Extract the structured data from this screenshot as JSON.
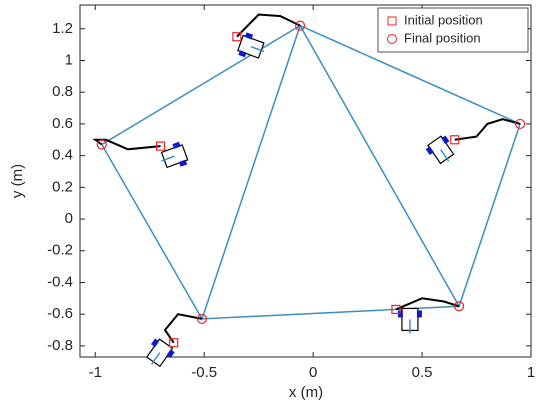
{
  "chart_data": {
    "type": "line",
    "xlabel": "x (m)",
    "ylabel": "y (m)",
    "xlim": [
      -1.07,
      1.0
    ],
    "ylim": [
      -0.87,
      1.35
    ],
    "xticks": [
      -1,
      -0.5,
      0,
      0.5,
      1
    ],
    "yticks": [
      -0.8,
      -0.6,
      -0.4,
      -0.2,
      0,
      0.2,
      0.4,
      0.6,
      0.8,
      1,
      1.2
    ],
    "legend": "top-right",
    "series": [
      {
        "name": "Initial position",
        "color": "#e8262d",
        "marker": "square",
        "x": [
          -0.35,
          0.65,
          0.38,
          -0.64,
          -0.7
        ],
        "y": [
          1.15,
          0.5,
          -0.57,
          -0.78,
          0.46
        ]
      },
      {
        "name": "Final position",
        "color": "#e8262d",
        "marker": "circle",
        "x": [
          -0.06,
          0.95,
          0.67,
          -0.51,
          -0.97
        ],
        "y": [
          1.22,
          0.6,
          -0.55,
          -0.63,
          0.47
        ]
      },
      {
        "color": "#3b8ec4",
        "x": [
          -0.06,
          0.95,
          0.67,
          -0.51,
          -0.97,
          -0.06,
          null,
          -0.06,
          -0.51,
          null,
          -0.06,
          0.67
        ],
        "y": [
          1.22,
          0.6,
          -0.55,
          -0.63,
          0.47,
          1.22,
          null,
          1.22,
          -0.63,
          null,
          1.22,
          -0.55
        ]
      },
      {
        "color": "#000000",
        "x": [
          -0.35,
          -0.3,
          -0.25,
          -0.15,
          -0.06
        ],
        "y": [
          1.15,
          1.22,
          1.29,
          1.28,
          1.22
        ]
      },
      {
        "color": "#000000",
        "x": [
          0.65,
          0.75,
          0.8,
          0.87,
          0.95
        ],
        "y": [
          0.5,
          0.52,
          0.6,
          0.63,
          0.6
        ]
      },
      {
        "color": "#000000",
        "x": [
          0.38,
          0.5,
          0.6,
          0.67
        ],
        "y": [
          -0.57,
          -0.5,
          -0.52,
          -0.55
        ]
      },
      {
        "color": "#000000",
        "x": [
          -0.64,
          -0.68,
          -0.62,
          -0.51
        ],
        "y": [
          -0.78,
          -0.7,
          -0.6,
          -0.63
        ]
      },
      {
        "color": "#000000",
        "x": [
          -0.7,
          -0.85,
          -0.95,
          -1.0,
          -0.97
        ],
        "y": [
          0.46,
          0.44,
          0.5,
          0.5,
          0.47
        ]
      }
    ]
  }
}
